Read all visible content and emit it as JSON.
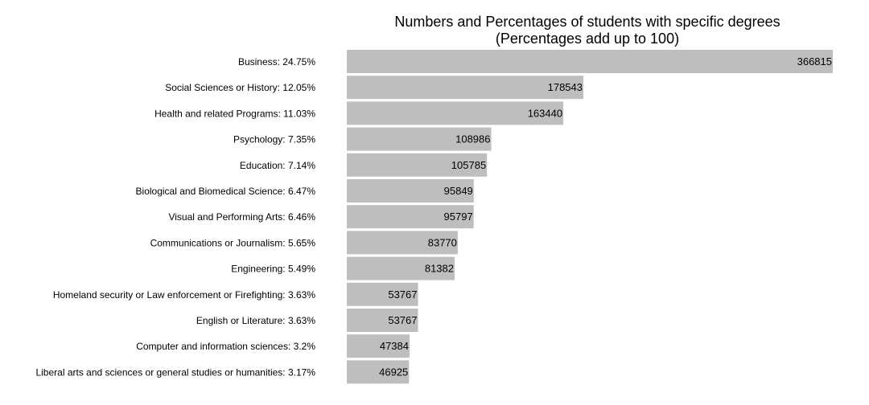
{
  "chart_data": {
    "type": "bar",
    "orientation": "horizontal",
    "title": "Numbers and Percentages of students with specific degrees",
    "subtitle": "(Percentages add up to 100)",
    "categories": [
      "Business: 24.75%",
      "Social Sciences or History: 12.05%",
      "Health and related Programs: 11.03%",
      "Psychology: 7.35%",
      "Education: 7.14%",
      "Biological and Biomedical Science: 6.47%",
      "Visual and Performing Arts: 6.46%",
      "Communications or Journalism: 5.65%",
      "Engineering: 5.49%",
      "Homeland security or Law enforcement or Firefighting: 3.63%",
      "English or Literature: 3.63%",
      "Computer and information sciences: 3.2%",
      "Liberal arts and sciences or general studies or humanities: 3.17%"
    ],
    "values": [
      366815,
      178543,
      163440,
      108986,
      105785,
      95849,
      95797,
      83770,
      81382,
      53767,
      53767,
      47384,
      46925
    ],
    "value_labels": [
      "366815",
      "178543",
      "163440",
      "108986",
      "105785",
      "95849",
      "95797",
      "83770",
      "81382",
      "53767",
      "53767",
      "47384",
      "46925"
    ],
    "xlim": [
      0,
      366815
    ],
    "grid": false,
    "legend": "none",
    "axes_visible": false,
    "bar_color": "#bebebe",
    "text_color": "#000000",
    "background_color": "#ffffff"
  }
}
